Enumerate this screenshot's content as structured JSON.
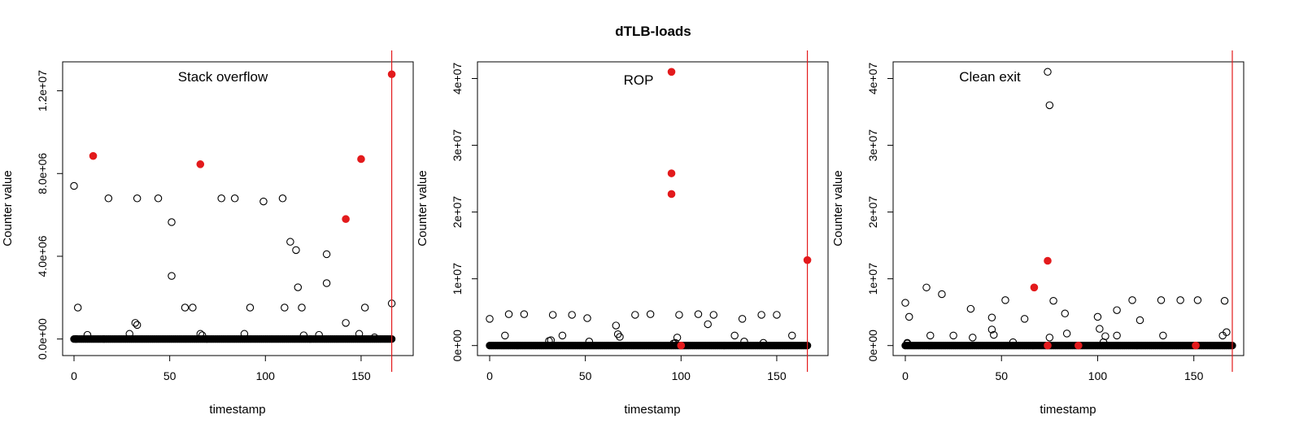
{
  "figure": {
    "title": "dTLB-loads"
  },
  "chart_data": [
    {
      "type": "scatter",
      "title": "Stack overflow",
      "xlabel": "timestamp",
      "ylabel": "Counter value",
      "xlim": [
        0,
        170
      ],
      "ylim": [
        -800000,
        13400000
      ],
      "xticks": [
        0,
        50,
        100,
        150
      ],
      "xtick_labels": [
        "0",
        "50",
        "100",
        "150"
      ],
      "yticks": [
        0,
        4000000,
        8000000,
        12000000
      ],
      "ytick_labels": [
        "0.0e+00",
        "4.0e+06",
        "8.0e+06",
        "1.2e+07"
      ],
      "vline_x": 166,
      "baseline": {
        "x_start": 0,
        "x_end": 166,
        "y": 0
      },
      "series": [
        {
          "marker": "open-circle",
          "color": "#000000",
          "x": [
            0,
            1,
            2,
            7,
            18,
            29,
            32,
            33,
            33,
            44,
            51,
            51,
            58,
            62,
            66,
            67,
            77,
            84,
            89,
            92,
            99,
            109,
            110,
            113,
            116,
            117,
            119,
            120,
            128,
            132,
            132,
            142,
            149,
            152,
            157,
            166
          ],
          "y": [
            7400000,
            0,
            1520000,
            200000,
            6800000,
            250000,
            780000,
            680000,
            6800000,
            6800000,
            5650000,
            3050000,
            1520000,
            1520000,
            250000,
            180000,
            6800000,
            6800000,
            250000,
            1520000,
            6650000,
            6800000,
            1520000,
            4700000,
            4300000,
            2500000,
            1520000,
            180000,
            200000,
            4100000,
            2700000,
            780000,
            250000,
            1520000,
            80000,
            1720000
          ]
        },
        {
          "marker": "filled-circle",
          "color": "#e31a1c",
          "x": [
            10,
            66,
            142,
            150,
            166
          ],
          "y": [
            8850000,
            8450000,
            5800000,
            8700000,
            12800000
          ]
        }
      ]
    },
    {
      "type": "scatter",
      "title": "ROP",
      "xlabel": "timestamp",
      "ylabel": "Counter value",
      "xlim": [
        0,
        170
      ],
      "ylim": [
        -1500000,
        42500000
      ],
      "xticks": [
        0,
        50,
        100,
        150
      ],
      "xtick_labels": [
        "0",
        "50",
        "100",
        "150"
      ],
      "yticks": [
        0,
        10000000,
        20000000,
        30000000,
        40000000
      ],
      "ytick_labels": [
        "0e+00",
        "1e+07",
        "2e+07",
        "3e+07",
        "4e+07"
      ],
      "vline_x": 166,
      "baseline": {
        "x_start": 0,
        "x_end": 166,
        "y": 0
      },
      "series": [
        {
          "marker": "open-circle",
          "color": "#000000",
          "x": [
            0,
            8,
            10,
            18,
            31,
            32,
            33,
            38,
            43,
            51,
            52,
            66,
            67,
            68,
            76,
            84,
            96,
            97,
            98,
            99,
            109,
            114,
            117,
            128,
            132,
            133,
            142,
            143,
            150,
            158
          ],
          "y": [
            4000000,
            1500000,
            4700000,
            4700000,
            700000,
            800000,
            4600000,
            1500000,
            4600000,
            4100000,
            600000,
            3000000,
            1700000,
            1300000,
            4600000,
            4700000,
            300000,
            400000,
            1200000,
            4600000,
            4700000,
            3200000,
            4600000,
            1500000,
            4000000,
            600000,
            4600000,
            400000,
            4600000,
            1500000
          ]
        },
        {
          "marker": "filled-circle",
          "color": "#e31a1c",
          "x": [
            95,
            95,
            95,
            100,
            166
          ],
          "y": [
            41000000,
            25800000,
            22700000,
            0,
            12800000
          ]
        }
      ]
    },
    {
      "type": "scatter",
      "title": "Clean exit",
      "xlabel": "timestamp",
      "ylabel": "Counter value",
      "xlim": [
        0,
        170
      ],
      "ylim": [
        -1500000,
        42500000
      ],
      "xticks": [
        0,
        50,
        100,
        150
      ],
      "xtick_labels": [
        "0",
        "50",
        "100",
        "150"
      ],
      "yticks": [
        0,
        10000000,
        20000000,
        30000000,
        40000000
      ],
      "ytick_labels": [
        "0e+00",
        "1e+07",
        "2e+07",
        "3e+07",
        "4e+07"
      ],
      "vline_x": 170,
      "baseline": {
        "x_start": 0,
        "x_end": 170,
        "y": 0
      },
      "series": [
        {
          "marker": "open-circle",
          "color": "#000000",
          "x": [
            0,
            1,
            1,
            2,
            11,
            13,
            19,
            25,
            34,
            35,
            45,
            45,
            46,
            52,
            56,
            62,
            74,
            75,
            75,
            77,
            83,
            84,
            100,
            101,
            103,
            104,
            110,
            110,
            118,
            122,
            133,
            134,
            143,
            152,
            165,
            166,
            167
          ],
          "y": [
            6400000,
            300000,
            400000,
            4300000,
            8700000,
            1500000,
            7700000,
            1500000,
            5500000,
            1200000,
            4200000,
            2400000,
            1600000,
            6800000,
            500000,
            4000000,
            41000000,
            36000000,
            1200000,
            6700000,
            4800000,
            1800000,
            4300000,
            2500000,
            500000,
            1400000,
            5300000,
            1500000,
            6800000,
            3800000,
            6800000,
            1500000,
            6800000,
            6800000,
            1500000,
            6700000,
            2000000
          ]
        },
        {
          "marker": "filled-circle",
          "color": "#e31a1c",
          "x": [
            67,
            74,
            74,
            90,
            151
          ],
          "y": [
            8700000,
            12700000,
            0,
            0,
            0
          ]
        }
      ]
    }
  ]
}
